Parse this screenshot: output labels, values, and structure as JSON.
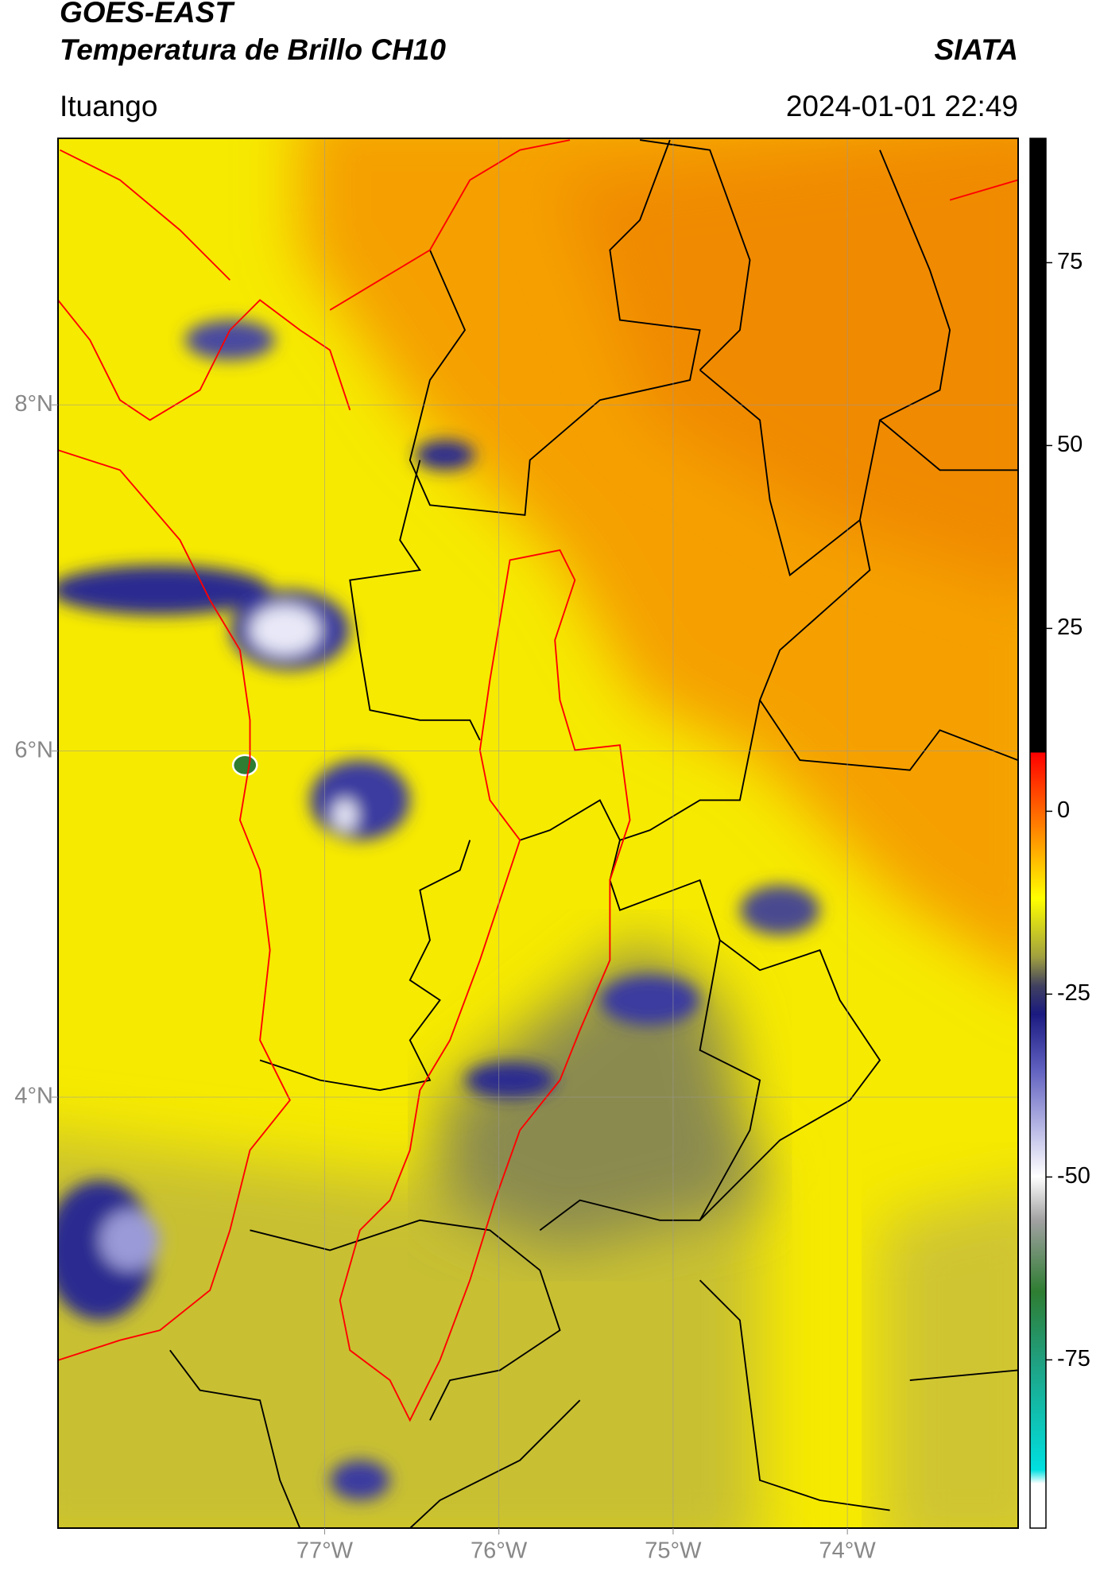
{
  "header": {
    "title": "GOES-EAST",
    "subtitle": "Temperatura de Brillo CH10",
    "brand": "SIATA",
    "location": "Ituango",
    "timestamp": "2024-01-01 22:49"
  },
  "map": {
    "xlim": [
      -78.53,
      -73.02
    ],
    "ylim": [
      1.51,
      9.54
    ],
    "xticks": [
      {
        "value": -77,
        "label": "77°W"
      },
      {
        "value": -76,
        "label": "76°W"
      },
      {
        "value": -75,
        "label": "75°W"
      },
      {
        "value": -74,
        "label": "74°W"
      }
    ],
    "yticks": [
      {
        "value": 8,
        "label": "8°N"
      },
      {
        "value": 6,
        "label": "6°N"
      },
      {
        "value": 4,
        "label": "4°N"
      }
    ],
    "grid": true
  },
  "colorbar": {
    "lim": [
      -98,
      92
    ],
    "ticks": [
      75,
      50,
      25,
      0,
      -25,
      -50,
      -75
    ]
  }
}
